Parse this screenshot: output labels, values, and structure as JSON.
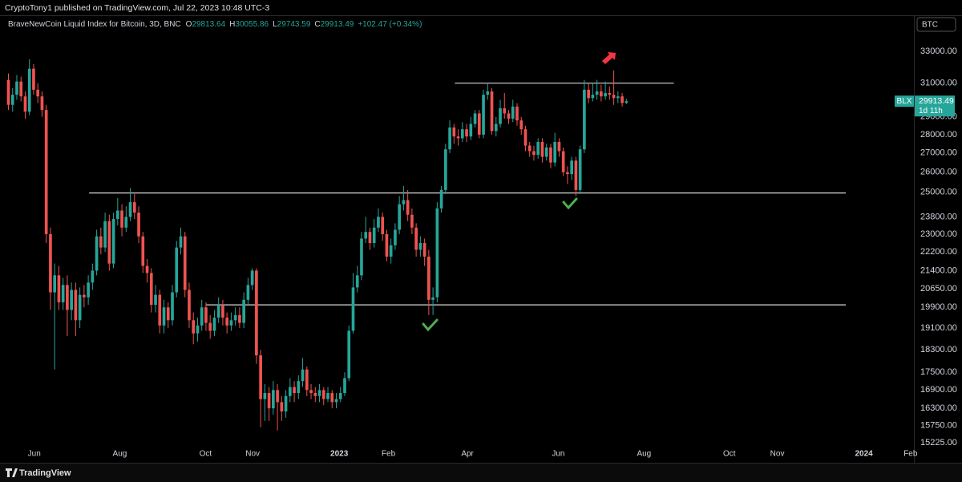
{
  "header": {
    "author_line": "CryptoTony1 published on TradingView.com, Jul 22, 2023 10:48 UTC-3",
    "symbol_box": "BTC"
  },
  "footer": {
    "brand": "TradingView"
  },
  "chart_data": {
    "type": "candlestick",
    "legend": {
      "title": "BraveNewCoin Liquid Index for Bitcoin, 3D, BNC",
      "ohlc": [
        {
          "key": "O",
          "value": 29813.64
        },
        {
          "key": "H",
          "value": 30055.86
        },
        {
          "key": "L",
          "value": 29743.59
        },
        {
          "key": "C",
          "value": 29913.49
        }
      ],
      "change": "+102.47 (+0.34%)"
    },
    "up_color": "#26a69a",
    "down_color": "#ef5350",
    "log_scale": true,
    "grid": false,
    "ylim": [
      14800,
      35400
    ],
    "yticks": [
      {
        "value": 33000,
        "label": "33000.00"
      },
      {
        "value": 31000,
        "label": "31000.00"
      },
      {
        "value": 29000,
        "label": "29000.00"
      },
      {
        "value": 28000,
        "label": "28000.00"
      },
      {
        "value": 27000,
        "label": "27000.00"
      },
      {
        "value": 26000,
        "label": "26000.00"
      },
      {
        "value": 25000,
        "label": "25000.00"
      },
      {
        "value": 23800,
        "label": "23800.00"
      },
      {
        "value": 23000,
        "label": "23000.00"
      },
      {
        "value": 22200,
        "label": "22200.00"
      },
      {
        "value": 21400,
        "label": "21400.00"
      },
      {
        "value": 20650,
        "label": "20650.00"
      },
      {
        "value": 19900,
        "label": "19900.00"
      },
      {
        "value": 19100,
        "label": "19100.00"
      },
      {
        "value": 18300,
        "label": "18300.00"
      },
      {
        "value": 17500,
        "label": "17500.00"
      },
      {
        "value": 16900,
        "label": "16900.00"
      },
      {
        "value": 16300,
        "label": "16300.00"
      },
      {
        "value": 15750,
        "label": "15750.00"
      },
      {
        "value": 15225,
        "label": "15225.00"
      }
    ],
    "xlim": [
      -2,
      215.4
    ],
    "xticks": [
      {
        "value": 6.15,
        "label": "Jun"
      },
      {
        "value": 26.5,
        "label": "Aug"
      },
      {
        "value": 46.9,
        "label": "Oct"
      },
      {
        "value": 58.1,
        "label": "Nov"
      },
      {
        "value": 78.7,
        "label": "2023"
      },
      {
        "value": 90.4,
        "label": "Feb"
      },
      {
        "value": 109.2,
        "label": "Apr"
      },
      {
        "value": 130.8,
        "label": "Jun"
      },
      {
        "value": 151.2,
        "label": "Aug"
      },
      {
        "value": 171.5,
        "label": "Oct"
      },
      {
        "value": 182.9,
        "label": "Nov"
      },
      {
        "value": 203.5,
        "label": "2024"
      },
      {
        "value": 214.6,
        "label": "Feb"
      }
    ],
    "open": [
      31200,
      29700,
      30300,
      31100,
      30200,
      29300,
      31900,
      30600,
      30200,
      29400,
      23000,
      20500,
      21200,
      20100,
      20800,
      19800,
      20600,
      19400,
      20400,
      20300,
      20900,
      21400,
      22900,
      22400,
      23600,
      21700,
      23700,
      24100,
      23300,
      23800,
      24500,
      24000,
      22900,
      21600,
      21300,
      20000,
      20400,
      19200,
      19900,
      19400,
      20500,
      22400,
      22900,
      20600,
      19400,
      18900,
      19200,
      19900,
      19300,
      19000,
      19500,
      20000,
      19500,
      19200,
      19400,
      19600,
      19300,
      20200,
      20800,
      21400,
      18100,
      16600,
      16800,
      16300,
      16900,
      16500,
      16200,
      16700,
      17000,
      16800,
      17200,
      17600,
      16900,
      16800,
      16700,
      16900,
      16600,
      16800,
      16500,
      16600,
      16800,
      17300,
      19000,
      20700,
      21200,
      22800,
      23100,
      22600,
      23300,
      23800,
      23000,
      22000,
      22500,
      23200,
      24400,
      24600,
      23900,
      23300,
      22300,
      22600,
      22000,
      20200,
      20300,
      24200,
      25100,
      27200,
      28400,
      27900,
      27800,
      28300,
      27900,
      28600,
      29200,
      28000,
      30300,
      30500,
      28200,
      28600,
      29500,
      29200,
      28900,
      29600,
      28800,
      28300,
      27400,
      27100,
      26900,
      27600,
      26800,
      27300,
      26500,
      27600,
      27100,
      26000,
      25900,
      26600,
      25100,
      27200,
      30600,
      30100,
      30300,
      30500,
      30200,
      30400,
      30300,
      30100,
      30200,
      29813.64
    ],
    "high": [
      31600,
      30700,
      31500,
      31400,
      30500,
      32500,
      32200,
      31000,
      30500,
      29700,
      23300,
      21700,
      21600,
      21100,
      21200,
      20900,
      20900,
      20700,
      20800,
      21200,
      21700,
      23200,
      23300,
      24000,
      23900,
      24000,
      24700,
      24400,
      24300,
      25200,
      24900,
      24300,
      23100,
      21900,
      21500,
      20800,
      20600,
      20200,
      20100,
      20800,
      22700,
      23300,
      23100,
      20900,
      19700,
      19500,
      20200,
      20100,
      19600,
      19800,
      20300,
      20200,
      19700,
      19700,
      19900,
      19900,
      20500,
      21100,
      21500,
      21500,
      18300,
      17100,
      17000,
      17200,
      17100,
      16700,
      16900,
      17300,
      17200,
      17400,
      18000,
      17700,
      17100,
      17000,
      17100,
      17000,
      17000,
      16900,
      16800,
      17000,
      17500,
      19200,
      21300,
      21600,
      23100,
      23800,
      23300,
      23700,
      24200,
      24000,
      23200,
      22800,
      23500,
      24800,
      25300,
      25100,
      24200,
      23500,
      22900,
      22800,
      22300,
      20700,
      24500,
      25300,
      27500,
      28800,
      28600,
      28300,
      28700,
      28600,
      29000,
      29400,
      29400,
      30600,
      31000,
      30700,
      29000,
      30000,
      30400,
      29400,
      30000,
      29800,
      29000,
      28500,
      27600,
      27400,
      27800,
      27800,
      27500,
      27500,
      28100,
      27800,
      27300,
      26300,
      26800,
      26800,
      27400,
      31200,
      31000,
      31000,
      31200,
      30900,
      31100,
      30800,
      31800,
      30500,
      30400,
      30055.86
    ],
    "low": [
      29400,
      29300,
      30000,
      29900,
      28900,
      29100,
      30300,
      29800,
      29000,
      22600,
      19800,
      17600,
      19800,
      19800,
      18800,
      19400,
      18800,
      19100,
      19900,
      20000,
      20600,
      21200,
      22100,
      22200,
      21400,
      21500,
      23400,
      22900,
      23100,
      23600,
      23700,
      22600,
      21300,
      20900,
      19700,
      19700,
      18900,
      18900,
      19100,
      19200,
      20300,
      22100,
      20300,
      19100,
      18500,
      18600,
      19000,
      19000,
      18700,
      18800,
      19300,
      19200,
      18900,
      19000,
      19200,
      19100,
      19100,
      20000,
      20600,
      17800,
      15700,
      15900,
      15900,
      16100,
      15600,
      15900,
      16000,
      16500,
      16500,
      16600,
      17000,
      16700,
      16600,
      16500,
      16500,
      16400,
      16500,
      16300,
      16300,
      16500,
      16700,
      17200,
      18900,
      20500,
      21000,
      22600,
      22300,
      22400,
      23100,
      22700,
      21800,
      21700,
      22300,
      23000,
      24100,
      23600,
      23000,
      22000,
      22000,
      21600,
      19600,
      19600,
      20100,
      24000,
      24900,
      27000,
      27500,
      27400,
      27600,
      27600,
      27700,
      28400,
      27800,
      27800,
      30000,
      28000,
      27900,
      28400,
      28900,
      28600,
      28700,
      28500,
      28000,
      27100,
      26800,
      26600,
      26700,
      26500,
      26600,
      26200,
      26300,
      26800,
      25800,
      25400,
      25600,
      24800,
      24900,
      27000,
      29800,
      29900,
      30000,
      29900,
      30000,
      30000,
      29700,
      29800,
      29600,
      29743.59
    ],
    "close": [
      29700,
      30300,
      31100,
      30200,
      29300,
      31900,
      30600,
      30200,
      29400,
      23000,
      20500,
      21200,
      20100,
      20800,
      19800,
      20600,
      19400,
      20400,
      20300,
      20900,
      21400,
      22900,
      22400,
      23600,
      21700,
      23700,
      24100,
      23300,
      23800,
      24500,
      24000,
      22900,
      21600,
      21300,
      20000,
      20400,
      19200,
      19900,
      19400,
      20500,
      22400,
      22900,
      20600,
      19400,
      18900,
      19200,
      19900,
      19300,
      19000,
      19500,
      20000,
      19500,
      19200,
      19400,
      19600,
      19300,
      20200,
      20800,
      21400,
      18100,
      16600,
      16800,
      16300,
      16900,
      16500,
      16200,
      16700,
      17000,
      16800,
      17200,
      17600,
      16900,
      16800,
      16700,
      16900,
      16600,
      16800,
      16500,
      16600,
      16800,
      17300,
      19000,
      20700,
      21200,
      22800,
      23100,
      22600,
      23300,
      23800,
      23000,
      22000,
      22500,
      23200,
      24400,
      24600,
      23900,
      23300,
      22300,
      22600,
      22000,
      20200,
      20300,
      24200,
      25100,
      27200,
      28400,
      27900,
      27800,
      28300,
      27900,
      28600,
      29200,
      28000,
      30300,
      30500,
      28200,
      28600,
      29500,
      29200,
      28900,
      29600,
      28800,
      28300,
      27400,
      27100,
      26900,
      27600,
      26800,
      27300,
      26500,
      27600,
      27100,
      26000,
      25900,
      26600,
      25100,
      27200,
      30600,
      30100,
      30300,
      30500,
      30200,
      30400,
      30300,
      30100,
      30200,
      29811.02,
      29913.49
    ],
    "levels": [
      {
        "value": 31000,
        "from": 106.2,
        "to": 158.3
      },
      {
        "value": 24950,
        "from": 19.2,
        "to": 199.2
      },
      {
        "value": 20000,
        "from": 47.1,
        "to": 199.2
      }
    ],
    "level_color": "#d9d9d9",
    "price_label": {
      "symbol": "BLX",
      "value": 29913.49,
      "countdown": "1d 11h"
    }
  }
}
